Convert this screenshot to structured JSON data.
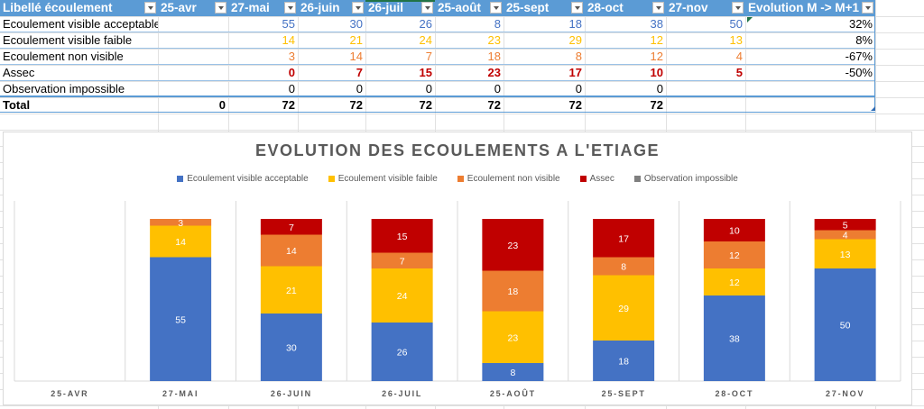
{
  "table": {
    "headers": [
      "Libellé écoulement",
      "25-avr",
      "27-mai",
      "26-juin",
      "26-juil",
      "25-août",
      "25-sept",
      "28-oct",
      "27-nov",
      "Evolution M -> M+1"
    ],
    "rows": [
      {
        "label": "Ecoulement visible acceptable",
        "values": [
          "",
          "55",
          "30",
          "26",
          "8",
          "18",
          "38",
          "50"
        ],
        "evolution": "32%",
        "tone": "blue"
      },
      {
        "label": "Ecoulement visible faible",
        "values": [
          "",
          "14",
          "21",
          "24",
          "23",
          "29",
          "12",
          "13"
        ],
        "evolution": "8%",
        "tone": "yellow"
      },
      {
        "label": "Ecoulement non visible",
        "values": [
          "",
          "3",
          "14",
          "7",
          "18",
          "8",
          "12",
          "4"
        ],
        "evolution": "-67%",
        "tone": "orange"
      },
      {
        "label": "Assec",
        "values": [
          "",
          "0",
          "7",
          "15",
          "23",
          "17",
          "10",
          "5"
        ],
        "evolution": "-50%",
        "tone": "red"
      },
      {
        "label": "Observation impossible",
        "values": [
          "",
          "0",
          "0",
          "0",
          "0",
          "0",
          "0",
          ""
        ],
        "evolution": "",
        "tone": "plain"
      }
    ],
    "total": {
      "label": "Total",
      "values": [
        "0",
        "72",
        "72",
        "72",
        "72",
        "72",
        "72",
        ""
      ],
      "evolution": ""
    }
  },
  "colors": {
    "header_bg": "#5b9bd5",
    "blue": "#4472c4",
    "yellow": "#ffc000",
    "orange": "#ed7d31",
    "red": "#c00000",
    "gray": "#7f7f7f"
  },
  "chart_data": {
    "type": "bar",
    "stacked": true,
    "title": "EVOLUTION DES ECOULEMENTS A L'ETIAGE",
    "xlabel": "",
    "ylabel": "",
    "ylim": [
      0,
      72
    ],
    "grid": false,
    "legend_position": "top",
    "categories": [
      "25-AVR",
      "27-MAI",
      "26-JUIN",
      "26-JUIL",
      "25-AOÛT",
      "25-SEPT",
      "28-OCT",
      "27-NOV"
    ],
    "series": [
      {
        "name": "Ecoulement visible acceptable",
        "color": "#4472c4",
        "values": [
          0,
          55,
          30,
          26,
          8,
          18,
          38,
          50
        ]
      },
      {
        "name": "Ecoulement visible faible",
        "color": "#ffc000",
        "values": [
          0,
          14,
          21,
          24,
          23,
          29,
          12,
          13
        ]
      },
      {
        "name": "Ecoulement non visible",
        "color": "#ed7d31",
        "values": [
          0,
          3,
          14,
          7,
          18,
          8,
          12,
          4
        ]
      },
      {
        "name": "Assec",
        "color": "#c00000",
        "values": [
          0,
          0,
          7,
          15,
          23,
          17,
          10,
          5
        ]
      },
      {
        "name": "Observation impossible",
        "color": "#7f7f7f",
        "values": [
          0,
          0,
          0,
          0,
          0,
          0,
          0,
          0
        ]
      }
    ]
  }
}
